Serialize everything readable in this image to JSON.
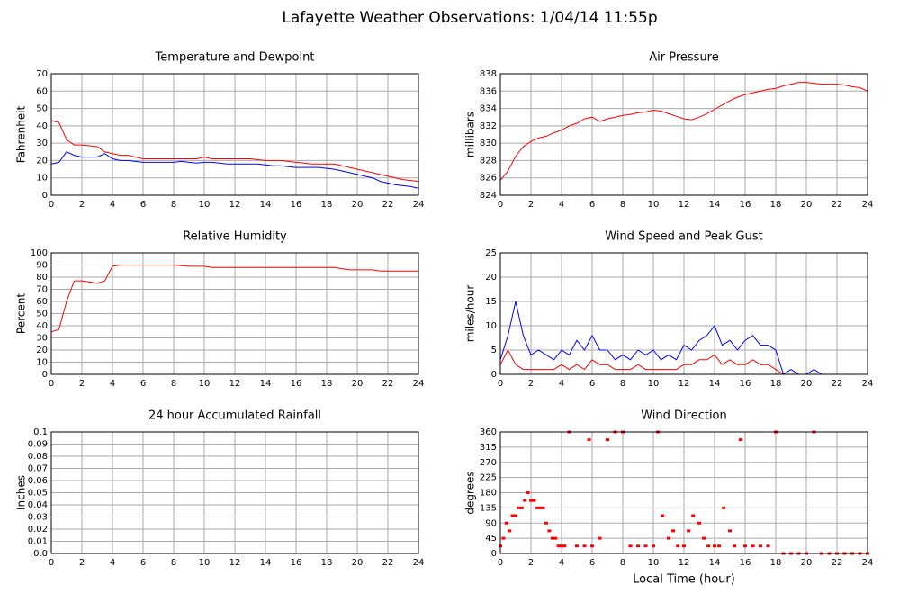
{
  "title": "Lafayette Weather Observations: 1/04/14 11:55p",
  "chart_data": [
    {
      "type": "line",
      "title": "Temperature and Dewpoint",
      "ylabel": "Fahrenheit",
      "x": [
        0,
        0.5,
        1,
        1.5,
        2,
        2.5,
        3,
        3.5,
        4,
        4.5,
        5,
        5.5,
        6,
        6.5,
        7,
        7.5,
        8,
        8.5,
        9,
        9.5,
        10,
        10.5,
        11,
        11.5,
        12,
        12.5,
        13,
        13.5,
        14,
        14.5,
        15,
        15.5,
        16,
        16.5,
        17,
        17.5,
        18,
        18.5,
        19,
        19.5,
        20,
        20.5,
        21,
        21.5,
        22,
        22.5,
        23,
        23.5,
        24
      ],
      "series": [
        {
          "color": "#ff0000",
          "values": [
            43,
            42,
            32,
            29,
            29,
            28.5,
            28,
            25,
            24,
            23,
            23,
            22,
            21,
            21,
            21,
            21,
            21,
            21,
            21,
            21,
            22,
            21,
            21,
            21,
            21,
            21,
            21,
            20.5,
            20,
            20,
            20,
            19.5,
            19,
            18.5,
            18,
            18,
            18,
            18,
            17,
            16,
            15,
            14,
            13,
            12,
            11,
            10,
            9,
            8.5,
            8
          ]
        },
        {
          "color": "#0000ff",
          "values": [
            18,
            19,
            25,
            23,
            22,
            22,
            22,
            24,
            21,
            20,
            20,
            19.5,
            19,
            19,
            19,
            19,
            19,
            19.5,
            19,
            18.5,
            19,
            19,
            18.5,
            18,
            18,
            18,
            18,
            18,
            17.5,
            17,
            17,
            16.5,
            16,
            16,
            16,
            16,
            15.5,
            15,
            14,
            13,
            12,
            11,
            10,
            8,
            7,
            6,
            5.5,
            5,
            4
          ]
        }
      ],
      "xlim": [
        0,
        24
      ],
      "xticks": [
        0,
        2,
        4,
        6,
        8,
        10,
        12,
        14,
        16,
        18,
        20,
        22,
        24
      ],
      "ylim": [
        0,
        70
      ],
      "yticks": [
        0,
        10,
        20,
        30,
        40,
        50,
        60,
        70
      ],
      "grid": true
    },
    {
      "type": "line",
      "title": "Air Pressure",
      "ylabel": "millibars",
      "x": [
        0,
        0.5,
        1,
        1.5,
        2,
        2.5,
        3,
        3.5,
        4,
        4.5,
        5,
        5.5,
        6,
        6.5,
        7,
        7.5,
        8,
        8.5,
        9,
        9.5,
        10,
        10.5,
        11,
        11.5,
        12,
        12.5,
        13,
        13.5,
        14,
        14.5,
        15,
        15.5,
        16,
        16.5,
        17,
        17.5,
        18,
        18.5,
        19,
        19.5,
        20,
        20.5,
        21,
        21.5,
        22,
        22.5,
        23,
        23.5,
        24
      ],
      "series": [
        {
          "color": "#ff0000",
          "values": [
            825.7,
            826.8,
            828.5,
            829.6,
            830.2,
            830.6,
            830.8,
            831.2,
            831.5,
            832,
            832.3,
            832.8,
            833,
            832.5,
            832.8,
            833,
            833.2,
            833.3,
            833.5,
            833.6,
            833.8,
            833.7,
            833.4,
            833.1,
            832.8,
            832.7,
            833,
            833.4,
            833.9,
            834.4,
            834.9,
            835.3,
            835.6,
            835.8,
            836,
            836.2,
            836.3,
            836.6,
            836.8,
            837,
            837,
            836.9,
            836.8,
            836.8,
            836.8,
            836.7,
            836.5,
            836.4,
            836
          ]
        }
      ],
      "xlim": [
        0,
        24
      ],
      "xticks": [
        0,
        2,
        4,
        6,
        8,
        10,
        12,
        14,
        16,
        18,
        20,
        22,
        24
      ],
      "ylim": [
        824,
        838
      ],
      "yticks": [
        824,
        826,
        828,
        830,
        832,
        834,
        836,
        838
      ],
      "grid": true
    },
    {
      "type": "line",
      "title": "Relative Humidity",
      "ylabel": "Percent",
      "x": [
        0,
        0.5,
        1,
        1.5,
        2,
        2.5,
        3,
        3.5,
        4,
        4.5,
        5,
        5.5,
        6,
        6.5,
        7,
        7.5,
        8,
        8.5,
        9,
        9.5,
        10,
        10.5,
        11,
        11.5,
        12,
        12.5,
        13,
        13.5,
        14,
        14.5,
        15,
        15.5,
        16,
        16.5,
        17,
        17.5,
        18,
        18.5,
        19,
        19.5,
        20,
        20.5,
        21,
        21.5,
        22,
        22.5,
        23,
        23.5,
        24
      ],
      "series": [
        {
          "color": "#ff0000",
          "values": [
            35,
            37,
            60,
            77,
            77,
            76,
            75,
            77,
            89,
            90,
            90,
            90,
            90,
            90,
            90,
            90,
            90,
            89.5,
            89,
            89,
            89,
            88,
            88,
            88,
            88,
            88,
            88,
            88,
            88,
            88,
            88,
            88,
            88,
            88,
            88,
            88,
            88,
            88,
            87,
            86,
            86,
            86,
            86,
            85,
            85,
            85,
            85,
            85,
            85
          ]
        }
      ],
      "xlim": [
        0,
        24
      ],
      "xticks": [
        0,
        2,
        4,
        6,
        8,
        10,
        12,
        14,
        16,
        18,
        20,
        22,
        24
      ],
      "ylim": [
        0,
        100
      ],
      "yticks": [
        0,
        10,
        20,
        30,
        40,
        50,
        60,
        70,
        80,
        90,
        100
      ],
      "grid": true
    },
    {
      "type": "line",
      "title": "Wind Speed and Peak Gust",
      "ylabel": "miles/hour",
      "x": [
        0,
        0.5,
        1,
        1.5,
        2,
        2.5,
        3,
        3.5,
        4,
        4.5,
        5,
        5.5,
        6,
        6.5,
        7,
        7.5,
        8,
        8.5,
        9,
        9.5,
        10,
        10.5,
        11,
        11.5,
        12,
        12.5,
        13,
        13.5,
        14,
        14.5,
        15,
        15.5,
        16,
        16.5,
        17,
        17.5,
        18,
        18.5,
        19,
        19.5,
        20,
        20.5,
        21,
        21.5,
        22,
        22.5,
        23,
        23.5,
        24
      ],
      "series": [
        {
          "color": "#0000ff",
          "values": [
            3,
            8,
            15,
            8,
            4,
            5,
            4,
            3,
            5,
            4,
            7,
            5,
            8,
            5,
            5,
            3,
            4,
            3,
            5,
            4,
            5,
            3,
            4,
            3,
            6,
            5,
            7,
            8,
            10,
            6,
            7,
            5,
            7,
            8,
            6,
            6,
            5,
            0,
            1,
            0,
            0,
            1,
            0,
            0,
            0,
            0,
            0,
            0,
            0
          ]
        },
        {
          "color": "#ff0000",
          "values": [
            2,
            5,
            2,
            1,
            1,
            1,
            1,
            1,
            2,
            1,
            2,
            1,
            3,
            2,
            2,
            1,
            1,
            1,
            2,
            1,
            1,
            1,
            1,
            1,
            2,
            2,
            3,
            3,
            4,
            2,
            3,
            2,
            2,
            3,
            2,
            2,
            1,
            0,
            0,
            0,
            0,
            0,
            0,
            0,
            0,
            0,
            0,
            0,
            0
          ]
        }
      ],
      "xlim": [
        0,
        24
      ],
      "xticks": [
        0,
        2,
        4,
        6,
        8,
        10,
        12,
        14,
        16,
        18,
        20,
        22,
        24
      ],
      "ylim": [
        0,
        25
      ],
      "yticks": [
        0,
        5,
        10,
        15,
        20,
        25
      ],
      "grid": true
    },
    {
      "type": "line",
      "title": "24 hour Accumulated Rainfall",
      "ylabel": "Inches",
      "x": [
        0,
        24
      ],
      "series": [
        {
          "color": "#ff0000",
          "values": [
            0,
            0
          ]
        }
      ],
      "xlim": [
        0,
        24
      ],
      "xticks": [
        0,
        2,
        4,
        6,
        8,
        10,
        12,
        14,
        16,
        18,
        20,
        22,
        24
      ],
      "ylim": [
        0,
        0.1
      ],
      "yticks": [
        {
          "value": 0,
          "label": "0.0"
        },
        0.01,
        0.02,
        0.03,
        0.04,
        0.05,
        0.06,
        0.07,
        0.08,
        0.09,
        0.1
      ],
      "grid": true
    },
    {
      "type": "scatter",
      "title": "Wind Direction",
      "ylabel": "degrees",
      "xlabel": "Local Time (hour)",
      "x": [
        0,
        0.2,
        0.4,
        0.6,
        0.8,
        1,
        1.2,
        1.4,
        1.6,
        1.8,
        2,
        2.2,
        2.4,
        2.6,
        2.8,
        3,
        3.2,
        3.4,
        3.6,
        3.8,
        4,
        4.2,
        4.5,
        5,
        5.5,
        5.8,
        6,
        6.5,
        7,
        7.5,
        8,
        8.5,
        9,
        9.5,
        10,
        10.3,
        10.6,
        11,
        11.3,
        11.6,
        12,
        12.3,
        12.6,
        13,
        13.3,
        13.6,
        14,
        14.3,
        14.6,
        15,
        15.3,
        15.7,
        16,
        16.5,
        17,
        17.5,
        18,
        18.5,
        19,
        19.5,
        20,
        20.5,
        21,
        21.5,
        22,
        22.5,
        23,
        23.5,
        24
      ],
      "values": [
        22,
        45,
        90,
        67,
        112,
        112,
        135,
        135,
        157,
        180,
        157,
        157,
        135,
        135,
        135,
        90,
        67,
        45,
        45,
        22,
        22,
        22,
        360,
        22,
        22,
        337,
        22,
        45,
        337,
        360,
        360,
        22,
        22,
        22,
        22,
        360,
        112,
        45,
        67,
        22,
        22,
        67,
        112,
        90,
        45,
        22,
        22,
        22,
        135,
        67,
        22,
        337,
        22,
        22,
        22,
        22,
        360,
        0,
        0,
        0,
        0,
        360,
        0,
        0,
        0,
        0,
        0,
        0,
        0
      ],
      "color": "#ff0000",
      "xlim": [
        0,
        24
      ],
      "xticks": [
        0,
        2,
        4,
        6,
        8,
        10,
        12,
        14,
        16,
        18,
        20,
        22,
        24
      ],
      "ylim": [
        0,
        360
      ],
      "yticks": [
        0,
        45,
        90,
        135,
        180,
        225,
        270,
        315,
        360
      ],
      "grid": true
    }
  ]
}
